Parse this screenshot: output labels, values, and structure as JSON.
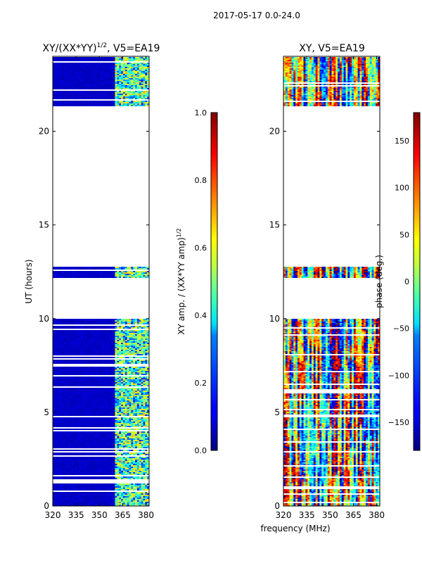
{
  "suptitle": "2017-05-17 0.0-24.0",
  "xlabel": "frequency (MHz)",
  "panels": [
    {
      "title_main": "XY/(XX*YY)",
      "title_sup": "1/2",
      "title_tail": ", V5=EA19",
      "ylabel": "UT (hours)",
      "colorbar_label_main": "XY amp. / (XX*YY amp)",
      "colorbar_label_sup": "1/2"
    },
    {
      "title": "XY, V5=EA19",
      "ylabel": "",
      "colorbar_label": "phase (deg.)"
    }
  ],
  "chart_data": [
    {
      "type": "heatmap",
      "title": "XY/(XX*YY)^1/2, V5=EA19",
      "xlabel": "",
      "ylabel": "UT (hours)",
      "xlim": [
        320,
        382
      ],
      "ylim": [
        0,
        24
      ],
      "xticks": [
        320,
        335,
        350,
        365,
        380
      ],
      "yticks": [
        0,
        5,
        10,
        15,
        20
      ],
      "colorbar": {
        "label": "XY amp. / (XX*YY amp)^1/2",
        "range": [
          0.0,
          1.0
        ],
        "ticks": [
          0.0,
          0.2,
          0.4,
          0.6,
          0.8,
          1.0
        ],
        "colormap": "jet"
      },
      "data_hour_ranges": [
        [
          0,
          10
        ],
        [
          12.2,
          12.8
        ],
        [
          21.3,
          24
        ]
      ],
      "bright_frequency_range_mhz": [
        360,
        382
      ],
      "typical_value_below_360mhz": 0.05,
      "typical_value_above_360mhz": 0.45
    },
    {
      "type": "heatmap",
      "title": "XY, V5=EA19",
      "xlabel": "frequency (MHz)",
      "ylabel": "",
      "xlim": [
        320,
        382
      ],
      "ylim": [
        0,
        24
      ],
      "xticks": [
        320,
        335,
        350,
        365,
        380
      ],
      "yticks": [
        0,
        5,
        10,
        15,
        20
      ],
      "colorbar": {
        "label": "phase (deg.)",
        "range": [
          -180,
          180
        ],
        "ticks": [
          -150,
          -100,
          -50,
          0,
          50,
          100,
          150
        ],
        "colormap": "jet"
      },
      "data_hour_ranges": [
        [
          0,
          10
        ],
        [
          12.2,
          12.8
        ],
        [
          21.3,
          24
        ]
      ]
    }
  ]
}
